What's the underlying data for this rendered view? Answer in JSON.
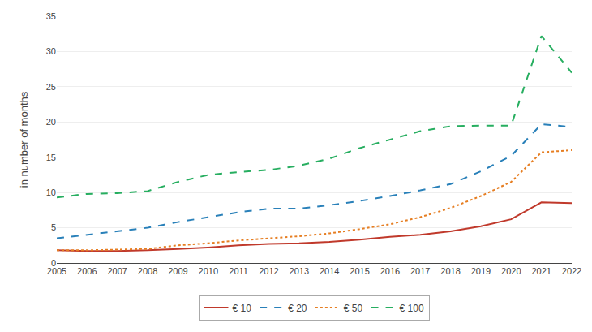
{
  "chart_data": {
    "type": "line",
    "x": [
      2005,
      2006,
      2007,
      2008,
      2009,
      2010,
      2011,
      2012,
      2013,
      2014,
      2015,
      2016,
      2017,
      2018,
      2019,
      2020,
      2021,
      2022
    ],
    "xlim": [
      2005,
      2022
    ],
    "xticks": [
      2005,
      2006,
      2007,
      2008,
      2009,
      2010,
      2011,
      2012,
      2013,
      2014,
      2015,
      2016,
      2017,
      2018,
      2019,
      2020,
      2021,
      2022
    ],
    "ylabel": "in number of months",
    "ylim": [
      0,
      35
    ],
    "yticks": [
      0,
      5,
      10,
      15,
      20,
      25,
      30,
      35
    ],
    "grid": true,
    "legend": "bottom",
    "series": [
      {
        "name": "€ 10",
        "color": "#c0392b",
        "line_style": "solid",
        "values": [
          1.8,
          1.7,
          1.7,
          1.8,
          2.0,
          2.2,
          2.5,
          2.7,
          2.8,
          3.0,
          3.3,
          3.7,
          4.0,
          4.5,
          5.2,
          6.2,
          8.6,
          8.5
        ]
      },
      {
        "name": "€ 20",
        "color": "#2980b9",
        "line_style": "dashed",
        "values": [
          3.5,
          4.0,
          4.5,
          5.0,
          5.8,
          6.5,
          7.2,
          7.7,
          7.7,
          8.2,
          8.8,
          9.5,
          10.3,
          11.2,
          13.0,
          15.2,
          19.7,
          19.3
        ]
      },
      {
        "name": "€ 50",
        "color": "#e67e22",
        "line_style": "dotted",
        "values": [
          1.8,
          1.8,
          1.9,
          2.0,
          2.5,
          2.8,
          3.2,
          3.5,
          3.8,
          4.2,
          4.8,
          5.5,
          6.5,
          7.8,
          9.5,
          11.5,
          15.7,
          16.0
        ]
      },
      {
        "name": "€ 100",
        "color": "#27ae60",
        "line_style": "dashed",
        "values": [
          9.3,
          9.8,
          9.9,
          10.2,
          11.5,
          12.5,
          12.9,
          13.2,
          13.8,
          14.8,
          16.3,
          17.5,
          18.7,
          19.4,
          19.5,
          19.5,
          32.2,
          27.0
        ]
      }
    ]
  }
}
